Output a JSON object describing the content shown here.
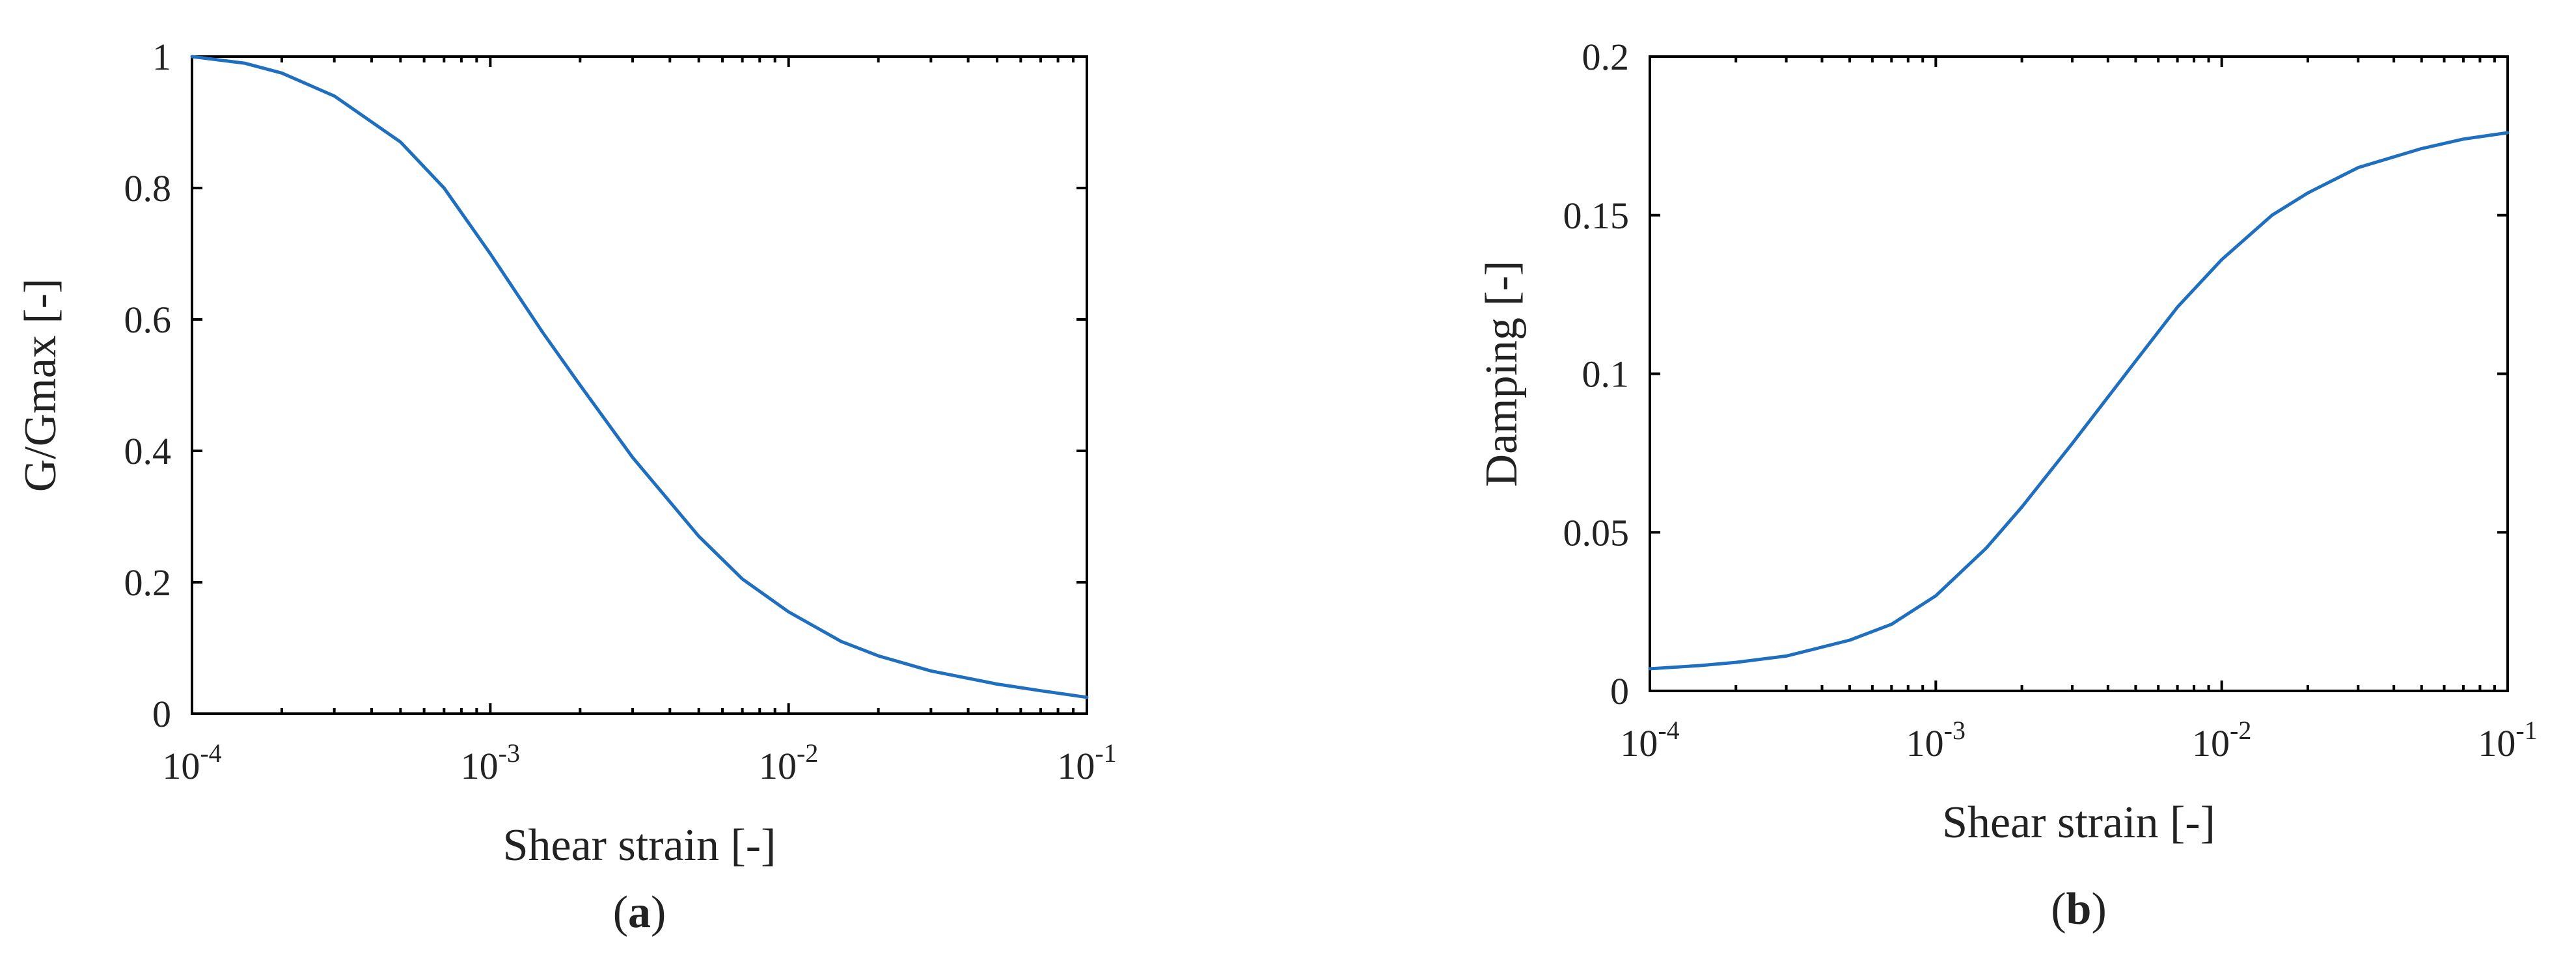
{
  "chart_data": [
    {
      "type": "line",
      "panel_label": "a",
      "xlabel": "Shear strain [-]",
      "ylabel": "G/Gmax [-]",
      "x_scale": "log",
      "xlim": [
        0.0001,
        0.1
      ],
      "ylim": [
        0,
        1
      ],
      "x_ticks": [
        {
          "base": "10",
          "exp": "-4"
        },
        {
          "base": "10",
          "exp": "-3"
        },
        {
          "base": "10",
          "exp": "-2"
        },
        {
          "base": "10",
          "exp": "-1"
        }
      ],
      "y_ticks": [
        "0",
        "0.2",
        "0.4",
        "0.6",
        "0.8",
        "1"
      ],
      "y_tick_values": [
        0,
        0.2,
        0.4,
        0.6,
        0.8,
        1
      ],
      "grid": false,
      "series": [
        {
          "color": "#1f6fc0",
          "x": [
            0.0001,
            0.00015,
            0.0002,
            0.0003,
            0.0005,
            0.0007,
            0.001,
            0.0015,
            0.002,
            0.003,
            0.005,
            0.007,
            0.01,
            0.015,
            0.02,
            0.03,
            0.05,
            0.07,
            0.1
          ],
          "y": [
            1.0,
            0.99,
            0.975,
            0.94,
            0.87,
            0.8,
            0.7,
            0.58,
            0.5,
            0.39,
            0.27,
            0.205,
            0.155,
            0.11,
            0.088,
            0.065,
            0.045,
            0.035,
            0.025
          ]
        }
      ]
    },
    {
      "type": "line",
      "panel_label": "b",
      "xlabel": "Shear strain [-]",
      "ylabel": "Damping [-]",
      "x_scale": "log",
      "xlim": [
        0.0001,
        0.1
      ],
      "ylim": [
        0,
        0.2
      ],
      "x_ticks": [
        {
          "base": "10",
          "exp": "-4"
        },
        {
          "base": "10",
          "exp": "-3"
        },
        {
          "base": "10",
          "exp": "-2"
        },
        {
          "base": "10",
          "exp": "-1"
        }
      ],
      "y_ticks": [
        "0",
        "0.05",
        "0.1",
        "0.15",
        "0.2"
      ],
      "y_tick_values": [
        0,
        0.05,
        0.1,
        0.15,
        0.2
      ],
      "grid": false,
      "series": [
        {
          "color": "#1f6fc0",
          "x": [
            0.0001,
            0.00015,
            0.0002,
            0.0003,
            0.0005,
            0.0007,
            0.001,
            0.0015,
            0.002,
            0.003,
            0.005,
            0.007,
            0.01,
            0.015,
            0.02,
            0.03,
            0.05,
            0.07,
            0.1
          ],
          "y": [
            0.007,
            0.008,
            0.009,
            0.011,
            0.016,
            0.021,
            0.03,
            0.045,
            0.058,
            0.078,
            0.104,
            0.121,
            0.136,
            0.15,
            0.157,
            0.165,
            0.171,
            0.174,
            0.176
          ]
        }
      ]
    }
  ]
}
